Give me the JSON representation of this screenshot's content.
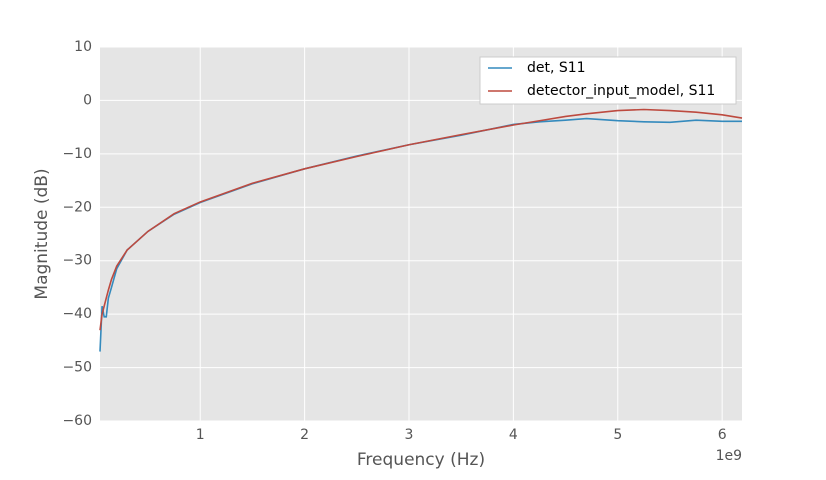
{
  "chart_data": {
    "type": "line",
    "x_label": "Frequency (Hz)",
    "y_label": "Magnitude (dB)",
    "x_offset_label": "1e9",
    "x": [
      40000000,
      60000000,
      80000000,
      100000000,
      120000000,
      150000000,
      200000000,
      300000000,
      500000000,
      750000000,
      1000000000,
      1500000000,
      2000000000,
      2500000000,
      3000000000,
      3500000000,
      4000000000,
      4250000000,
      4500000000,
      4700000000,
      5000000000,
      5250000000,
      5500000000,
      5750000000,
      6000000000,
      6190000000
    ],
    "series": [
      {
        "name": "det, S11",
        "color": "#348abd",
        "values": [
          -47,
          -38.5,
          -40.5,
          -40.5,
          -37,
          -35,
          -31.5,
          -28,
          -24.5,
          -21.3,
          -19.1,
          -15.6,
          -12.8,
          -10.4,
          -8.3,
          -6.5,
          -4.5,
          -4.0,
          -3.7,
          -3.4,
          -3.8,
          -4.0,
          -4.1,
          -3.7,
          -3.9,
          -3.9
        ]
      },
      {
        "name": "detector_input_model, S11",
        "color": "#bd4a3f",
        "values": [
          -43,
          -40,
          -38.5,
          -37,
          -35.5,
          -33.5,
          -31,
          -28,
          -24.5,
          -21.2,
          -19,
          -15.5,
          -12.8,
          -10.5,
          -8.3,
          -6.4,
          -4.6,
          -3.8,
          -3.0,
          -2.5,
          -1.9,
          -1.7,
          -1.9,
          -2.2,
          -2.7,
          -3.3
        ]
      }
    ],
    "xlim": [
      40000000,
      6190000000
    ],
    "xticks": [
      {
        "value": 1000000000,
        "label": "1"
      },
      {
        "value": 2000000000,
        "label": "2"
      },
      {
        "value": 3000000000,
        "label": "3"
      },
      {
        "value": 4000000000,
        "label": "4"
      },
      {
        "value": 5000000000,
        "label": "5"
      },
      {
        "value": 6000000000,
        "label": "6"
      }
    ],
    "ylim": [
      -60,
      10
    ],
    "yticks": [
      {
        "value": -60,
        "label": "−60"
      },
      {
        "value": -50,
        "label": "−50"
      },
      {
        "value": -40,
        "label": "−40"
      },
      {
        "value": -30,
        "label": "−30"
      },
      {
        "value": -20,
        "label": "−20"
      },
      {
        "value": -10,
        "label": "−10"
      },
      0,
      10
    ],
    "grid": true,
    "legend": "upper right"
  }
}
